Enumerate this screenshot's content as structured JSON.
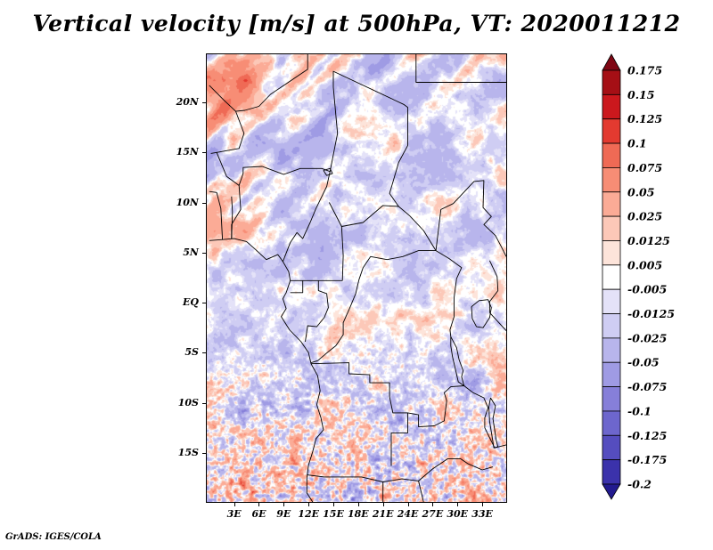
{
  "title": "Vertical velocity [m/s] at 500hPa, VT: 2020011212",
  "footer": "GrADS: IGES/COLA",
  "chart_data": {
    "type": "heatmap",
    "title": "Vertical velocity [m/s] at 500hPa, VT: 2020011212",
    "variable": "Vertical velocity",
    "units": "m/s",
    "pressure_level": "500hPa",
    "valid_time": "2020011212",
    "x_axis": {
      "labels": [
        "3E",
        "6E",
        "9E",
        "12E",
        "15E",
        "18E",
        "21E",
        "24E",
        "27E",
        "30E",
        "33E"
      ],
      "values": [
        3,
        6,
        9,
        12,
        15,
        18,
        21,
        24,
        27,
        30,
        33
      ]
    },
    "y_axis": {
      "labels": [
        "20N",
        "15N",
        "10N",
        "5N",
        "EQ",
        "5S",
        "10S",
        "15S"
      ],
      "values": [
        20,
        15,
        10,
        5,
        0,
        -5,
        -10,
        -15
      ]
    },
    "lon_range": [
      -0.3,
      35.9
    ],
    "lat_range": [
      -19.9,
      24.8
    ],
    "colorbar": {
      "position": "right",
      "labels": [
        "0.175",
        "0.15",
        "0.125",
        "0.1",
        "0.075",
        "0.05",
        "0.025",
        "0.0125",
        "0.005",
        "-0.005",
        "-0.0125",
        "-0.025",
        "-0.05",
        "-0.075",
        "-0.1",
        "-0.125",
        "-0.175",
        "-0.2"
      ],
      "values": [
        0.175,
        0.15,
        0.125,
        0.1,
        0.075,
        0.05,
        0.025,
        0.0125,
        0.005,
        -0.005,
        -0.0125,
        -0.025,
        -0.05,
        -0.075,
        -0.1,
        -0.125,
        -0.175,
        -0.2
      ],
      "colors": [
        "#7f0714",
        "#a50f15",
        "#cb181d",
        "#e33a30",
        "#ef6a55",
        "#f78d75",
        "#fbab96",
        "#fcc8b8",
        "#fde4da",
        "#ffffff",
        "#e4e2f8",
        "#cfcdf3",
        "#b8b5ec",
        "#9f9be4",
        "#867fd9",
        "#6d66cd",
        "#554dbf",
        "#3b32ab",
        "#221a8f"
      ]
    },
    "map": {
      "lines": [
        [
          [
            0,
            6.2
          ],
          [
            1.6,
            6.3
          ],
          [
            3,
            6.4
          ],
          [
            4.5,
            6.1
          ],
          [
            5.6,
            5.3
          ],
          [
            6.9,
            4.3
          ],
          [
            8.3,
            4.8
          ],
          [
            8.9,
            4.1
          ],
          [
            9.6,
            3.1
          ],
          [
            9.8,
            2.2
          ],
          [
            9.3,
            1
          ],
          [
            8.9,
            0.4
          ],
          [
            9.3,
            -0.6
          ],
          [
            8.7,
            -1.4
          ],
          [
            9.7,
            -2.7
          ],
          [
            11.1,
            -3.9
          ],
          [
            12,
            -5
          ],
          [
            12.3,
            -6.1
          ],
          [
            13.1,
            -7.3
          ],
          [
            13.4,
            -8.8
          ],
          [
            13,
            -10.2
          ],
          [
            13.5,
            -11.5
          ],
          [
            13.8,
            -12.7
          ],
          [
            12.9,
            -13.6
          ],
          [
            12.5,
            -14.9
          ],
          [
            12,
            -16.2
          ],
          [
            11.8,
            -17.5
          ],
          [
            11.8,
            -19
          ],
          [
            12.5,
            -19.9
          ]
        ],
        [
          [
            25,
            24.8
          ],
          [
            25,
            22
          ],
          [
            35.9,
            22
          ]
        ],
        [
          [
            0,
            21.7
          ],
          [
            1.8,
            20.2
          ],
          [
            3.2,
            19.1
          ],
          [
            4.3,
            19.2
          ],
          [
            6,
            19.6
          ],
          [
            7.4,
            20.8
          ],
          [
            11.9,
            23.3
          ],
          [
            11.9,
            24.8
          ]
        ],
        [
          [
            3.2,
            19.1
          ],
          [
            4.2,
            16.9
          ],
          [
            3.6,
            15.4
          ],
          [
            0.9,
            15
          ],
          [
            0.2,
            14.9
          ]
        ],
        [
          [
            0.9,
            15
          ],
          [
            2.1,
            12.6
          ],
          [
            3.6,
            11.7
          ],
          [
            4.1,
            12.9
          ],
          [
            4.1,
            13.5
          ],
          [
            6.4,
            13.6
          ],
          [
            9,
            12.8
          ],
          [
            11,
            13.4
          ],
          [
            13.6,
            13.4
          ]
        ],
        [
          [
            13.6,
            13.4
          ],
          [
            14.6,
            13.1
          ],
          [
            15.5,
            16.9
          ],
          [
            15,
            21.5
          ],
          [
            15,
            23.1
          ],
          [
            23.5,
            19.8
          ],
          [
            24,
            19.5
          ],
          [
            24,
            15.7
          ],
          [
            22.9,
            14
          ],
          [
            22.4,
            12.6
          ],
          [
            21.8,
            10.9
          ],
          [
            22.9,
            9.6
          ],
          [
            24.2,
            8.7
          ],
          [
            25.9,
            7.2
          ],
          [
            27.4,
            5.2
          ]
        ],
        [
          [
            8.9,
            4.1
          ],
          [
            9.8,
            6
          ],
          [
            10.6,
            7
          ],
          [
            11.3,
            6.4
          ],
          [
            12.2,
            8
          ],
          [
            12.9,
            9.4
          ],
          [
            14.2,
            11.6
          ],
          [
            14.6,
            13.1
          ]
        ],
        [
          [
            14.5,
            10
          ],
          [
            16,
            7.6
          ],
          [
            18.6,
            8
          ],
          [
            21,
            9.7
          ],
          [
            22.9,
            9.6
          ]
        ],
        [
          [
            16,
            7.6
          ],
          [
            16.2,
            4.7
          ],
          [
            16.1,
            2.2
          ]
        ],
        [
          [
            9.8,
            2.2
          ],
          [
            13.3,
            2.2
          ],
          [
            16.1,
            2.2
          ]
        ],
        [
          [
            9.8,
            1
          ],
          [
            11.3,
            1
          ],
          [
            11.3,
            2.2
          ]
        ],
        [
          [
            11.6,
            -3.9
          ],
          [
            11.9,
            -2.3
          ],
          [
            13,
            -2.4
          ],
          [
            13.9,
            -1.5
          ],
          [
            14.4,
            -0.5
          ],
          [
            14.2,
            0.9
          ],
          [
            13.2,
            1.2
          ],
          [
            13.2,
            2.2
          ]
        ],
        [
          [
            12.3,
            -6
          ],
          [
            13.1,
            -5.8
          ],
          [
            14.4,
            -4.9
          ],
          [
            15.3,
            -4.3
          ],
          [
            16.2,
            -3.2
          ],
          [
            16.2,
            -2
          ],
          [
            17,
            -0.5
          ],
          [
            17.7,
            0.9
          ],
          [
            18.1,
            2.3
          ],
          [
            18.6,
            3.5
          ],
          [
            19.5,
            4.6
          ],
          [
            21.5,
            4.3
          ],
          [
            23.4,
            4.6
          ],
          [
            25.3,
            5.2
          ],
          [
            27.4,
            5.2
          ]
        ],
        [
          [
            27.4,
            5.2
          ],
          [
            29,
            4.4
          ],
          [
            30.5,
            3.5
          ],
          [
            29.9,
            2.4
          ],
          [
            29.6,
            0.5
          ],
          [
            29.6,
            -1.4
          ],
          [
            29.1,
            -2.7
          ],
          [
            29.2,
            -3.4
          ]
        ],
        [
          [
            27.4,
            5.2
          ],
          [
            28,
            9.3
          ],
          [
            29.5,
            9.9
          ],
          [
            32,
            12.1
          ],
          [
            33.2,
            12.2
          ],
          [
            33.1,
            9.5
          ],
          [
            34.1,
            8.6
          ],
          [
            33.2,
            7.8
          ],
          [
            34.6,
            6.7
          ],
          [
            35.3,
            5.6
          ],
          [
            35.9,
            4.6
          ]
        ],
        [
          [
            33.9,
            4.2
          ],
          [
            34.8,
            2.6
          ],
          [
            34.9,
            1.2
          ],
          [
            33.9,
            0.1
          ],
          [
            33.9,
            -1
          ]
        ],
        [
          [
            33.9,
            -1
          ],
          [
            35.9,
            -2.8
          ]
        ],
        [
          [
            12.3,
            -6.1
          ],
          [
            16.9,
            -6
          ],
          [
            16.9,
            -7.1
          ],
          [
            19.4,
            -7.2
          ],
          [
            19.4,
            -8
          ],
          [
            21.8,
            -8
          ],
          [
            21.8,
            -9.4
          ],
          [
            22.2,
            -11
          ],
          [
            24,
            -11
          ],
          [
            24,
            -13
          ],
          [
            22,
            -13
          ],
          [
            22,
            -16.3
          ]
        ],
        [
          [
            24,
            -11
          ],
          [
            25.3,
            -11.2
          ],
          [
            25.3,
            -12.4
          ],
          [
            27.2,
            -12.3
          ],
          [
            28.4,
            -11.8
          ],
          [
            28.7,
            -9.8
          ],
          [
            28.4,
            -9
          ],
          [
            29.2,
            -8.4
          ],
          [
            30.8,
            -8.3
          ]
        ],
        [
          [
            11.8,
            -17.2
          ],
          [
            13.9,
            -17.4
          ],
          [
            18.4,
            -17.4
          ],
          [
            21,
            -17.9
          ],
          [
            23.3,
            -17.6
          ],
          [
            25.3,
            -17.8
          ],
          [
            27,
            -16.6
          ],
          [
            28.8,
            -15.6
          ],
          [
            30.4,
            -15.6
          ],
          [
            31.3,
            -16.1
          ],
          [
            33,
            -16.7
          ],
          [
            34.3,
            -16.4
          ]
        ],
        [
          [
            21,
            -17.9
          ],
          [
            21,
            -19.9
          ]
        ],
        [
          [
            25.3,
            -17.8
          ],
          [
            25.9,
            -19.9
          ]
        ],
        [
          [
            30.8,
            -8.3
          ],
          [
            31.9,
            -9
          ],
          [
            33.2,
            -9.5
          ],
          [
            33.7,
            -10.5
          ],
          [
            33.3,
            -11.5
          ],
          [
            33.3,
            -12.5
          ],
          [
            34.5,
            -14.5
          ],
          [
            35.9,
            -14.2
          ]
        ],
        [
          [
            31.7,
            -0.4
          ],
          [
            32.6,
            0.2
          ],
          [
            33.7,
            0.3
          ],
          [
            34.1,
            -0.5
          ],
          [
            33.9,
            -1.5
          ],
          [
            33.1,
            -2.5
          ],
          [
            32.3,
            -2.4
          ],
          [
            31.8,
            -1.6
          ],
          [
            31.7,
            -0.4
          ]
        ],
        [
          [
            29.2,
            -3.4
          ],
          [
            29.9,
            -4.5
          ],
          [
            30.2,
            -5.7
          ],
          [
            30.7,
            -6.8
          ],
          [
            30.5,
            -7.4
          ],
          [
            30.8,
            -8.3
          ],
          [
            30.1,
            -7.9
          ],
          [
            29.8,
            -6.8
          ],
          [
            29.4,
            -5.4
          ],
          [
            29.2,
            -4.3
          ],
          [
            29.2,
            -3.4
          ]
        ],
        [
          [
            34,
            -9.5
          ],
          [
            34.6,
            -10.3
          ],
          [
            34.3,
            -11.6
          ],
          [
            34.5,
            -12.7
          ],
          [
            34.7,
            -13.8
          ],
          [
            34.9,
            -14.4
          ],
          [
            34.4,
            -14.5
          ],
          [
            34.2,
            -13.4
          ],
          [
            33.9,
            -11.9
          ],
          [
            33.8,
            -10.4
          ],
          [
            34,
            -9.5
          ]
        ],
        [
          [
            0,
            11.1
          ],
          [
            0.9,
            11
          ],
          [
            1.4,
            9.4
          ],
          [
            1.6,
            6.3
          ]
        ],
        [
          [
            2.7,
            10.6
          ],
          [
            2.8,
            9.1
          ],
          [
            2.7,
            6.4
          ]
        ],
        [
          [
            3.6,
            11.7
          ],
          [
            3.8,
            9.3
          ],
          [
            2.7,
            7.8
          ],
          [
            2.7,
            6.4
          ]
        ],
        [
          [
            13.8,
            13.2
          ],
          [
            14.6,
            13.4
          ],
          [
            14.9,
            12.9
          ],
          [
            14.2,
            12.7
          ],
          [
            13.8,
            13.2
          ]
        ]
      ]
    }
  }
}
